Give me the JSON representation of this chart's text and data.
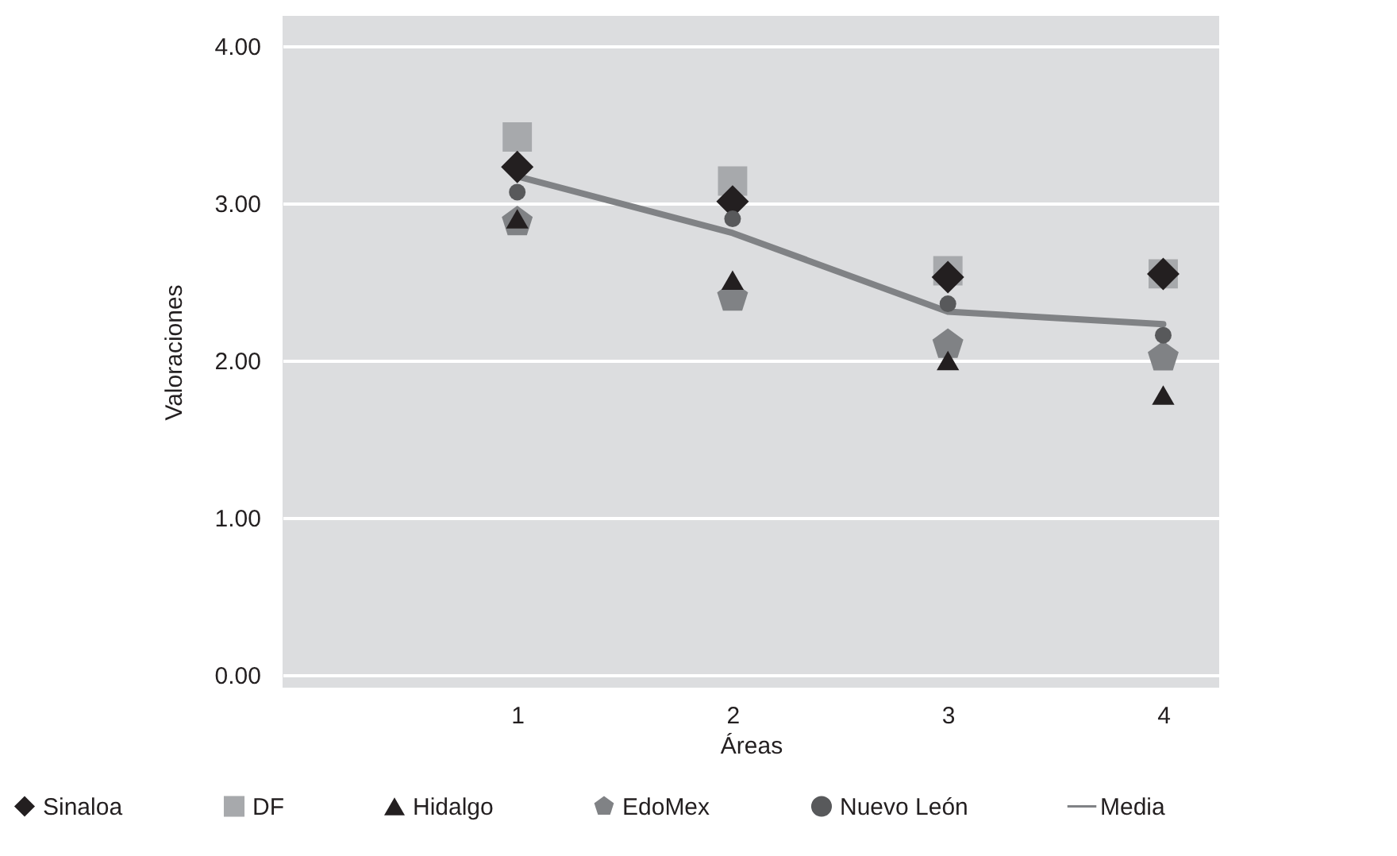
{
  "chart_data": {
    "type": "scatter",
    "xlabel": "Áreas",
    "ylabel": "Valoraciones",
    "x": [
      1,
      2,
      3,
      4
    ],
    "series": [
      {
        "name": "Sinaloa",
        "color": "#231f20",
        "marker": "diamond",
        "values": [
          3.23,
          3.01,
          2.53,
          2.55
        ]
      },
      {
        "name": "DF",
        "color": "#a7a9ac",
        "marker": "square",
        "values": [
          3.42,
          3.14,
          2.57,
          2.55
        ]
      },
      {
        "name": "Hidalgo",
        "color": "#231f20",
        "marker": "triangle",
        "values": [
          2.9,
          2.51,
          2.0,
          1.78
        ]
      },
      {
        "name": "EdoMex",
        "color": "#808285",
        "values": [
          2.88,
          2.4,
          2.1,
          2.02
        ]
      },
      {
        "name": "Nuevo León",
        "color": "#58595b",
        "marker": "circle",
        "values": [
          3.07,
          2.9,
          2.36,
          2.16
        ]
      },
      {
        "name": "Media",
        "color": "#808285",
        "type": "line",
        "line_style": "solid",
        "values": [
          3.17,
          2.81,
          2.31,
          2.23
        ]
      }
    ],
    "xlim": [
      -0.09,
      4.26
    ],
    "xticks": [
      1,
      2,
      3,
      4
    ],
    "ylim": [
      -0.08,
      4.19
    ],
    "yticks": [
      {
        "value": 0,
        "label": "0.00"
      },
      {
        "value": 1,
        "label": "1.00"
      },
      {
        "value": 2,
        "label": "2.00"
      },
      {
        "value": 3,
        "label": "3.00"
      },
      {
        "value": 4,
        "label": "4.00"
      }
    ],
    "grid": "y",
    "legend": "bottom"
  }
}
